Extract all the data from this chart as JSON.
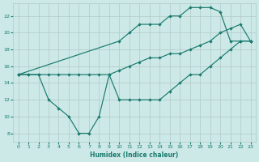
{
  "bg_color": "#cce9e7",
  "grid_color": "#b0c8c6",
  "line_color": "#1a7a6e",
  "xlabel": "Humidex (Indice chaleur)",
  "xlim": [
    -0.5,
    23.5
  ],
  "ylim": [
    7.0,
    23.5
  ],
  "yticks": [
    8,
    10,
    12,
    14,
    16,
    18,
    20,
    22
  ],
  "xticks": [
    0,
    1,
    2,
    3,
    4,
    5,
    6,
    7,
    8,
    9,
    10,
    11,
    12,
    13,
    14,
    15,
    16,
    17,
    18,
    19,
    20,
    21,
    22,
    23
  ],
  "line_upper_x": [
    0,
    10,
    11,
    12,
    13,
    14,
    15,
    16,
    17,
    18,
    19,
    20,
    21,
    22,
    23
  ],
  "line_upper_y": [
    15,
    19,
    20,
    21,
    21,
    21,
    22,
    22,
    23,
    23,
    23,
    22.5,
    19,
    19,
    19
  ],
  "line_lower_x": [
    0,
    1,
    2,
    3,
    4,
    5,
    6,
    7,
    8,
    9,
    10,
    11,
    12,
    13,
    14,
    15,
    16,
    17,
    18,
    19,
    20,
    21,
    22,
    23
  ],
  "line_lower_y": [
    15,
    15,
    15,
    12,
    11,
    10,
    8,
    8,
    10,
    15,
    12,
    12,
    12,
    12,
    12,
    13,
    14,
    15,
    15,
    16,
    17,
    18,
    19,
    19
  ],
  "line_diag_x": [
    0,
    1,
    2,
    3,
    4,
    5,
    6,
    7,
    8,
    9,
    10,
    11,
    12,
    13,
    14,
    15,
    16,
    17,
    18,
    19,
    20,
    21,
    22,
    23
  ],
  "line_diag_y": [
    15,
    15,
    15,
    15,
    15,
    15,
    15,
    15,
    15,
    15,
    15.5,
    16,
    16.5,
    17,
    17,
    17.5,
    17.5,
    18,
    18.5,
    19,
    20,
    20.5,
    21,
    19
  ]
}
